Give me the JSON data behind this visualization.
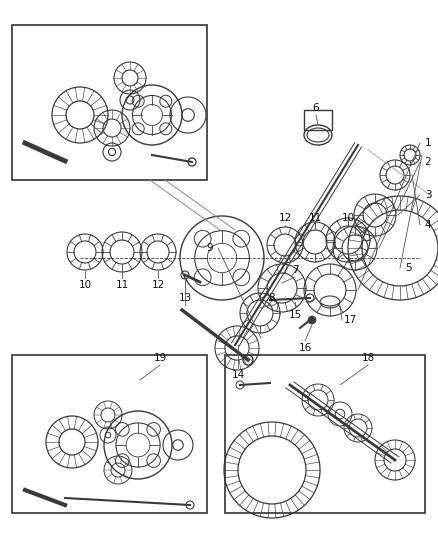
{
  "background_color": "#f5f5f5",
  "line_color": "#2a2a2a",
  "part_color": "#3a3a3a",
  "label_color": "#111111",
  "label_fontsize": 7.5,
  "fig_width": 4.38,
  "fig_height": 5.33,
  "dpi": 100
}
